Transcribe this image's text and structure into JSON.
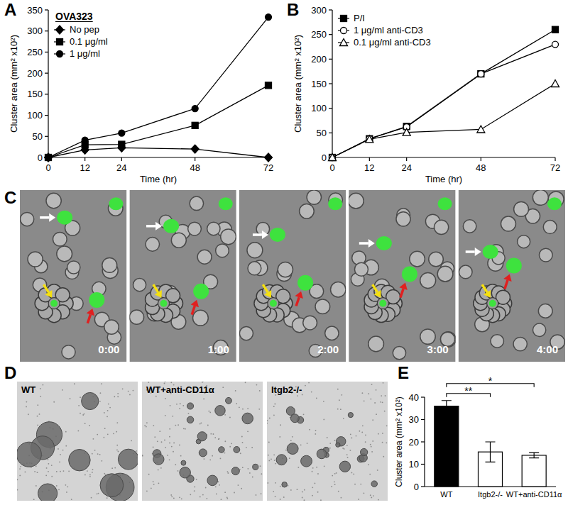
{
  "chart_data": [
    {
      "type": "line",
      "label": "A",
      "title": "OVA323",
      "x": [
        0,
        12,
        24,
        48,
        72
      ],
      "xlim": [
        0,
        72
      ],
      "xticks": [
        0,
        12,
        24,
        48,
        72
      ],
      "ylim": [
        0,
        350
      ],
      "yticks": [
        0,
        50,
        100,
        150,
        200,
        250,
        300,
        350
      ],
      "x_label": "Time (hr)",
      "y_label": "Cluster area (mm² x10²)",
      "legend": "top-left",
      "series": [
        {
          "name": "No pep",
          "color": "#000000",
          "marker": "diamond",
          "values": [
            0,
            18,
            23,
            20,
            0
          ]
        },
        {
          "name": "0.1 μg/ml",
          "color": "#000000",
          "marker": "square",
          "values": [
            0,
            30,
            31,
            76,
            171
          ]
        },
        {
          "name": "1 μg/ml",
          "color": "#000000",
          "marker": "circle",
          "values": [
            0,
            41,
            58,
            116,
            333
          ]
        }
      ]
    },
    {
      "type": "line",
      "label": "B",
      "x": [
        0,
        12,
        24,
        48,
        72
      ],
      "xlim": [
        0,
        72
      ],
      "xticks": [
        0,
        12,
        24,
        48,
        72
      ],
      "ylim": [
        0,
        300
      ],
      "yticks": [
        0,
        50,
        100,
        150,
        200,
        250,
        300
      ],
      "x_label": "Time (hr)",
      "y_label": "Cluster area (mm² x10²)",
      "legend": "top-left",
      "series": [
        {
          "name": "P/I",
          "color": "#000000",
          "marker": "square",
          "values": [
            0,
            38,
            63,
            170,
            260
          ]
        },
        {
          "name": "1 μg/ml anti-CD3",
          "color": "#000000",
          "marker": "circle-open",
          "values": [
            0,
            38,
            62,
            170,
            230
          ]
        },
        {
          "name": "0.1 μg/ml anti-CD3",
          "color": "#000000",
          "marker": "triangle-open",
          "values": [
            0,
            37,
            51,
            57,
            150
          ]
        }
      ]
    },
    {
      "type": "bar",
      "label": "E",
      "categories": [
        "WT",
        "Itgb2-/-",
        "WT+anti-CD11α"
      ],
      "values": [
        36,
        15.5,
        14
      ],
      "errors": [
        2.5,
        4.5,
        1.2
      ],
      "colors": [
        "#000000",
        "#ffffff",
        "#ffffff"
      ],
      "ylim": [
        0,
        40
      ],
      "yticks": [
        0,
        10,
        20,
        30,
        40
      ],
      "y_label": "Cluster area (mm² x10²)",
      "annotations": [
        {
          "text": "**",
          "from": 0,
          "to": 1
        },
        {
          "text": "*",
          "from": 0,
          "to": 2
        }
      ]
    }
  ],
  "panel_c": {
    "label": "C",
    "frames": [
      "0:00",
      "1:00",
      "2:00",
      "3:00",
      "4:00"
    ]
  },
  "panel_d": {
    "label": "D",
    "captions": [
      "WT",
      "WT+anti-CD11α",
      "Itgb2-/-"
    ]
  }
}
